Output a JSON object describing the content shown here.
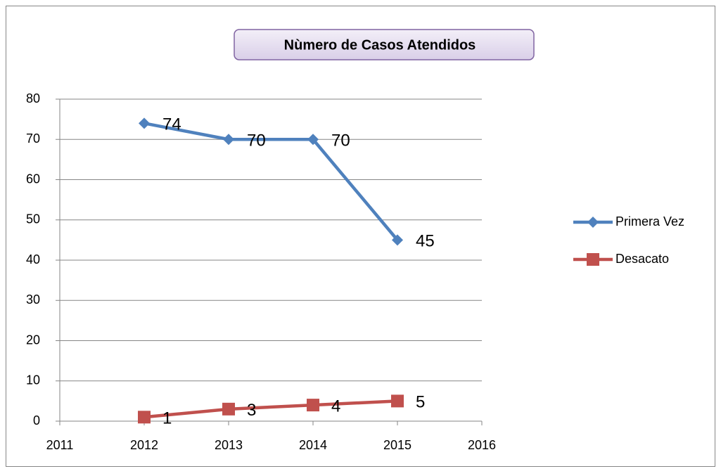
{
  "chart_data": {
    "type": "line",
    "title": "Nùmero de Casos Atendidos",
    "x": [
      2012,
      2013,
      2014,
      2015
    ],
    "series": [
      {
        "name": "Primera Vez",
        "color": "#4f81bd",
        "marker": "diamond",
        "values": [
          74,
          70,
          70,
          45
        ]
      },
      {
        "name": "Desacato",
        "color": "#c0504d",
        "marker": "square",
        "values": [
          1,
          3,
          4,
          5
        ]
      }
    ],
    "xlim": [
      2011,
      2016
    ],
    "xticks": [
      2011,
      2012,
      2013,
      2014,
      2015,
      2016
    ],
    "ylim": [
      0,
      80
    ],
    "yticks": [
      0,
      10,
      20,
      30,
      40,
      50,
      60,
      70,
      80
    ],
    "grid": true,
    "legend": "right",
    "data_labels": true
  }
}
